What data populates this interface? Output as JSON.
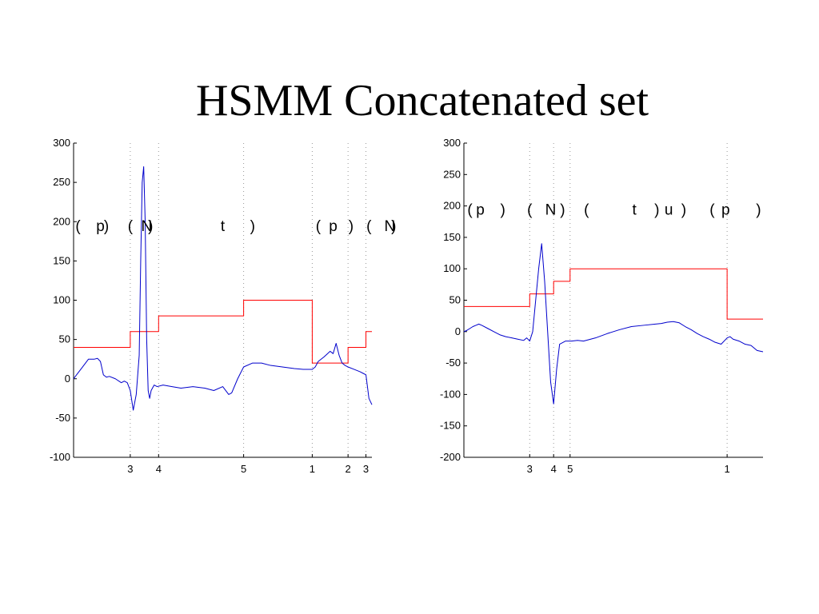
{
  "title": "HSMM Concatenated set",
  "colors": {
    "signal": "#0000cc",
    "state": "#ff0000",
    "boundary": "#999999",
    "axis": "#000000"
  },
  "chart_data": [
    {
      "type": "line",
      "xlim": [
        0,
        100
      ],
      "ylim": [
        -100,
        300
      ],
      "yticks": [
        -100,
        -50,
        0,
        50,
        100,
        150,
        200,
        250,
        300
      ],
      "boundaries": [
        {
          "x": 19,
          "label": "3"
        },
        {
          "x": 28.5,
          "label": "4"
        },
        {
          "x": 57,
          "label": "5"
        },
        {
          "x": 80,
          "label": "1"
        },
        {
          "x": 92,
          "label": "2"
        },
        {
          "x": 98,
          "label": "3"
        }
      ],
      "segment_labels": [
        {
          "x": 1.5,
          "text": "("
        },
        {
          "x": 9,
          "text": "p"
        },
        {
          "x": 11,
          "text": ")"
        },
        {
          "x": 19,
          "text": "("
        },
        {
          "x": 24.5,
          "text": "N"
        },
        {
          "x": 25.8,
          "text": ")"
        },
        {
          "x": 50,
          "text": "t"
        },
        {
          "x": 60,
          "text": ")"
        },
        {
          "x": 82,
          "text": "("
        },
        {
          "x": 87,
          "text": "p"
        },
        {
          "x": 93,
          "text": ")"
        },
        {
          "x": 99,
          "text": "("
        },
        {
          "x": 106,
          "text": "N"
        },
        {
          "x": 107.3,
          "text": ")"
        }
      ],
      "label_y": 195,
      "series": [
        {
          "role": "state",
          "step": true,
          "x": [
            0,
            19,
            28.5,
            57,
            80,
            92,
            98,
            100
          ],
          "y": [
            40,
            60,
            80,
            100,
            20,
            40,
            60,
            60
          ]
        },
        {
          "role": "signal",
          "x": [
            0,
            1,
            3,
            5,
            7,
            8,
            9,
            10,
            11,
            12,
            14,
            16,
            17,
            18,
            19,
            20,
            21,
            22,
            22.5,
            23,
            23.5,
            24,
            24.5,
            25,
            25.5,
            26,
            27,
            28,
            30,
            33,
            36,
            40,
            44,
            47,
            50,
            52,
            53,
            55,
            57,
            60,
            63,
            66,
            70,
            74,
            77,
            80,
            81,
            82,
            84,
            86,
            87,
            88,
            89,
            90,
            91,
            92,
            94,
            96,
            97,
            98,
            99,
            100
          ],
          "y": [
            0,
            5,
            15,
            25,
            25,
            26,
            22,
            5,
            2,
            3,
            0,
            -5,
            -3,
            -5,
            -15,
            -40,
            -20,
            30,
            150,
            250,
            270,
            200,
            50,
            -15,
            -25,
            -15,
            -8,
            -10,
            -8,
            -10,
            -12,
            -10,
            -12,
            -15,
            -10,
            -20,
            -18,
            0,
            15,
            20,
            20,
            17,
            15,
            13,
            12,
            12,
            15,
            22,
            28,
            35,
            32,
            45,
            30,
            20,
            17,
            15,
            12,
            9,
            7,
            5,
            -25,
            -33
          ]
        }
      ]
    },
    {
      "type": "line",
      "xlim": [
        0,
        100
      ],
      "ylim": [
        -200,
        300
      ],
      "yticks": [
        -200,
        -150,
        -100,
        -50,
        0,
        50,
        100,
        150,
        200,
        250,
        300
      ],
      "boundaries": [
        {
          "x": 22,
          "label": "3"
        },
        {
          "x": 30,
          "label": "4"
        },
        {
          "x": 35.5,
          "label": "5"
        },
        {
          "x": 88,
          "label": "1"
        }
      ],
      "segment_labels": [
        {
          "x": 2,
          "text": "("
        },
        {
          "x": 5.5,
          "text": "p"
        },
        {
          "x": 13,
          "text": ")"
        },
        {
          "x": 22,
          "text": "("
        },
        {
          "x": 29,
          "text": "N"
        },
        {
          "x": 33,
          "text": ")"
        },
        {
          "x": 41,
          "text": "("
        },
        {
          "x": 57,
          "text": "t"
        },
        {
          "x": 64.5,
          "text": ")"
        },
        {
          "x": 68.5,
          "text": "u"
        },
        {
          "x": 73.5,
          "text": ")"
        },
        {
          "x": 83,
          "text": "("
        },
        {
          "x": 87.5,
          "text": "p"
        },
        {
          "x": 98.5,
          "text": ")"
        }
      ],
      "label_y": 195,
      "series": [
        {
          "role": "state",
          "step": true,
          "x": [
            0,
            22,
            30,
            35.5,
            88,
            100
          ],
          "y": [
            40,
            60,
            80,
            100,
            20,
            20
          ]
        },
        {
          "role": "signal",
          "x": [
            0,
            1,
            2,
            3,
            4,
            5,
            6,
            8,
            10,
            12,
            14,
            16,
            18,
            20,
            21,
            22,
            23,
            24,
            25,
            26,
            27,
            28,
            29,
            30,
            31,
            32,
            34,
            36,
            38,
            40,
            44,
            48,
            52,
            56,
            60,
            64,
            66,
            68,
            70,
            72,
            74,
            76,
            78,
            80,
            82,
            84,
            86,
            88,
            89,
            90,
            92,
            94,
            96,
            98,
            100
          ],
          "y": [
            0,
            2,
            5,
            8,
            10,
            12,
            10,
            5,
            0,
            -5,
            -8,
            -10,
            -12,
            -14,
            -10,
            -15,
            0,
            50,
            100,
            140,
            80,
            0,
            -80,
            -115,
            -60,
            -20,
            -15,
            -15,
            -14,
            -15,
            -10,
            -3,
            3,
            8,
            10,
            12,
            13,
            15,
            16,
            14,
            8,
            3,
            -3,
            -8,
            -12,
            -17,
            -20,
            -10,
            -8,
            -12,
            -15,
            -20,
            -22,
            -30,
            -32
          ]
        }
      ]
    }
  ]
}
